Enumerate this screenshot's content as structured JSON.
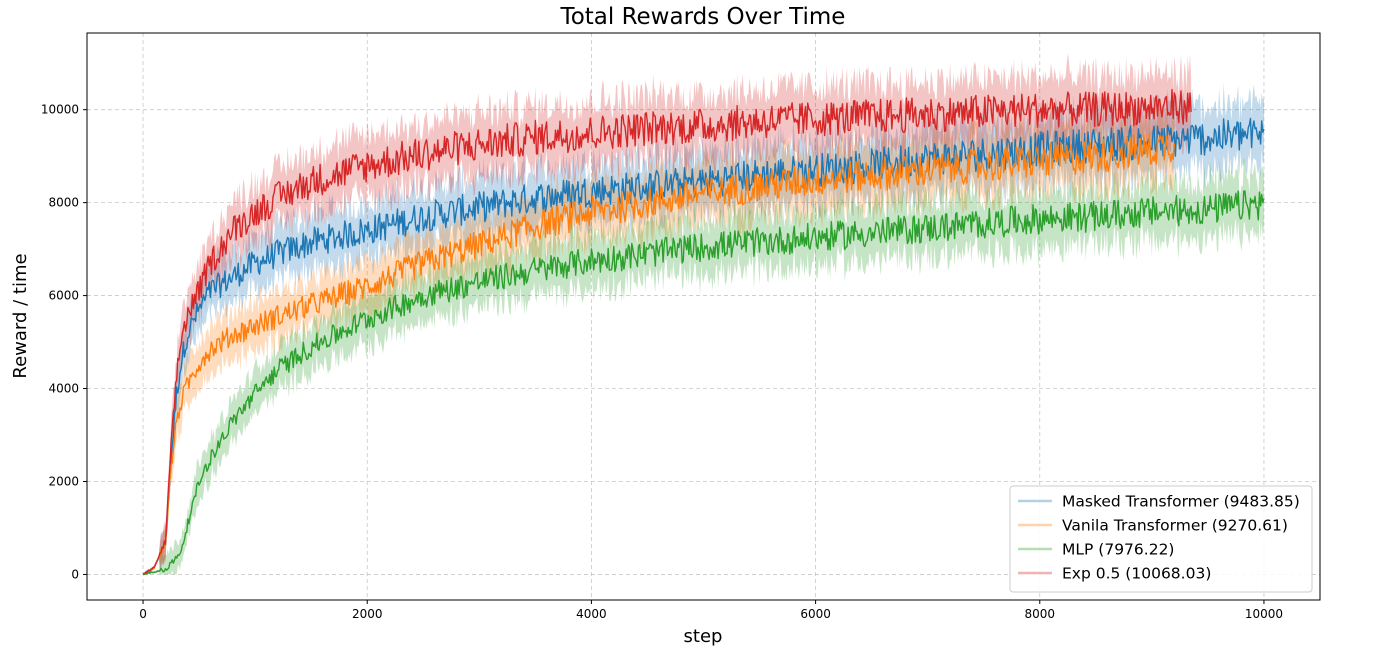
{
  "chart_data": {
    "type": "line",
    "title": "Total Rewards Over Time",
    "xlabel": "step",
    "ylabel": "Reward / time",
    "xlim": [
      -500,
      10500
    ],
    "ylim": [
      -550,
      11650
    ],
    "xticks": [
      0,
      2000,
      4000,
      6000,
      8000,
      10000
    ],
    "xtick_labels": [
      "0",
      "2000",
      "4000",
      "6000",
      "8000",
      "10000"
    ],
    "yticks": [
      0,
      2000,
      4000,
      6000,
      8000,
      10000
    ],
    "ytick_labels": [
      "0",
      "2000",
      "4000",
      "6000",
      "8000",
      "10000"
    ],
    "grid": true,
    "legend_position": "lower-right",
    "series": [
      {
        "name": "Masked Transformer (9483.85)",
        "color": "#1f77b4",
        "band": "shaded ±std",
        "x": [
          0,
          100,
          200,
          250,
          300,
          350,
          400,
          500,
          600,
          800,
          1000,
          1200,
          1500,
          2000,
          2500,
          3000,
          3500,
          4000,
          4500,
          5000,
          5500,
          6000,
          6500,
          7000,
          7500,
          8000,
          8500,
          9000,
          9500,
          10000
        ],
        "y": [
          0,
          150,
          700,
          2500,
          3900,
          4700,
          5200,
          5700,
          6100,
          6400,
          6700,
          6900,
          7150,
          7400,
          7700,
          7900,
          8100,
          8250,
          8350,
          8450,
          8600,
          8700,
          8800,
          8950,
          9050,
          9150,
          9250,
          9300,
          9400,
          9480
        ]
      },
      {
        "name": "Vanila Transformer (9270.61)",
        "color": "#ff7f0e",
        "band": "shaded ±std",
        "x": [
          0,
          100,
          200,
          250,
          300,
          350,
          400,
          500,
          600,
          800,
          1000,
          1200,
          1500,
          2000,
          2500,
          3000,
          3500,
          4000,
          4500,
          5000,
          5500,
          6000,
          6500,
          7000,
          7500,
          8000,
          8500,
          9000,
          9200
        ],
        "y": [
          0,
          150,
          700,
          2300,
          3300,
          3800,
          4100,
          4550,
          4850,
          5150,
          5350,
          5550,
          5800,
          6200,
          6700,
          7100,
          7500,
          7800,
          8000,
          8200,
          8350,
          8500,
          8600,
          8700,
          8800,
          8900,
          9000,
          9150,
          9270
        ]
      },
      {
        "name": "MLP (7976.22)",
        "color": "#2ca02c",
        "band": "shaded ±std",
        "x": [
          0,
          100,
          200,
          300,
          350,
          400,
          500,
          600,
          700,
          800,
          1000,
          1200,
          1500,
          2000,
          2500,
          3000,
          3500,
          4000,
          4500,
          5000,
          5500,
          6000,
          6500,
          7000,
          7500,
          8000,
          8500,
          9000,
          9500,
          10000
        ],
        "y": [
          0,
          60,
          120,
          350,
          600,
          1100,
          2000,
          2500,
          2900,
          3300,
          3900,
          4400,
          4900,
          5500,
          6000,
          6300,
          6550,
          6750,
          6900,
          7050,
          7150,
          7250,
          7350,
          7450,
          7550,
          7650,
          7700,
          7800,
          7850,
          7980
        ]
      },
      {
        "name": "Exp 0.5 (10068.03)",
        "color": "#d62728",
        "band": "shaded ±std",
        "x": [
          0,
          100,
          200,
          250,
          300,
          350,
          400,
          500,
          600,
          800,
          1000,
          1200,
          1500,
          2000,
          2500,
          3000,
          3500,
          4000,
          4500,
          5000,
          5500,
          6000,
          6500,
          7000,
          7500,
          8000,
          8500,
          9000,
          9350
        ],
        "y": [
          0,
          150,
          700,
          2700,
          4300,
          5200,
          5600,
          6100,
          6700,
          7400,
          7800,
          8100,
          8450,
          8800,
          9050,
          9250,
          9400,
          9500,
          9600,
          9650,
          9750,
          9800,
          9850,
          9900,
          9950,
          10000,
          10000,
          10050,
          10070
        ]
      }
    ]
  }
}
